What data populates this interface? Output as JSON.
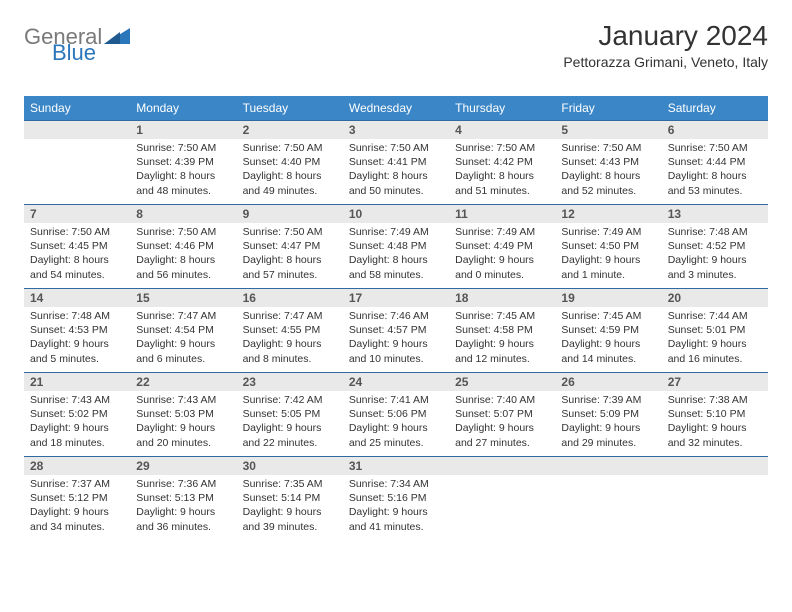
{
  "logo": {
    "general": "General",
    "blue": "Blue"
  },
  "title": "January 2024",
  "location": "Pettorazza Grimani, Veneto, Italy",
  "colors": {
    "header_bg": "#3b86c6",
    "daynum_bg": "#e9e9e9",
    "rule": "#2f6aa3",
    "title_color": "#333333"
  },
  "day_headers": [
    "Sunday",
    "Monday",
    "Tuesday",
    "Wednesday",
    "Thursday",
    "Friday",
    "Saturday"
  ],
  "weeks": [
    [
      {
        "n": "",
        "sr": "",
        "ss": "",
        "dl": ""
      },
      {
        "n": "1",
        "sr": "Sunrise: 7:50 AM",
        "ss": "Sunset: 4:39 PM",
        "dl": "Daylight: 8 hours and 48 minutes."
      },
      {
        "n": "2",
        "sr": "Sunrise: 7:50 AM",
        "ss": "Sunset: 4:40 PM",
        "dl": "Daylight: 8 hours and 49 minutes."
      },
      {
        "n": "3",
        "sr": "Sunrise: 7:50 AM",
        "ss": "Sunset: 4:41 PM",
        "dl": "Daylight: 8 hours and 50 minutes."
      },
      {
        "n": "4",
        "sr": "Sunrise: 7:50 AM",
        "ss": "Sunset: 4:42 PM",
        "dl": "Daylight: 8 hours and 51 minutes."
      },
      {
        "n": "5",
        "sr": "Sunrise: 7:50 AM",
        "ss": "Sunset: 4:43 PM",
        "dl": "Daylight: 8 hours and 52 minutes."
      },
      {
        "n": "6",
        "sr": "Sunrise: 7:50 AM",
        "ss": "Sunset: 4:44 PM",
        "dl": "Daylight: 8 hours and 53 minutes."
      }
    ],
    [
      {
        "n": "7",
        "sr": "Sunrise: 7:50 AM",
        "ss": "Sunset: 4:45 PM",
        "dl": "Daylight: 8 hours and 54 minutes."
      },
      {
        "n": "8",
        "sr": "Sunrise: 7:50 AM",
        "ss": "Sunset: 4:46 PM",
        "dl": "Daylight: 8 hours and 56 minutes."
      },
      {
        "n": "9",
        "sr": "Sunrise: 7:50 AM",
        "ss": "Sunset: 4:47 PM",
        "dl": "Daylight: 8 hours and 57 minutes."
      },
      {
        "n": "10",
        "sr": "Sunrise: 7:49 AM",
        "ss": "Sunset: 4:48 PM",
        "dl": "Daylight: 8 hours and 58 minutes."
      },
      {
        "n": "11",
        "sr": "Sunrise: 7:49 AM",
        "ss": "Sunset: 4:49 PM",
        "dl": "Daylight: 9 hours and 0 minutes."
      },
      {
        "n": "12",
        "sr": "Sunrise: 7:49 AM",
        "ss": "Sunset: 4:50 PM",
        "dl": "Daylight: 9 hours and 1 minute."
      },
      {
        "n": "13",
        "sr": "Sunrise: 7:48 AM",
        "ss": "Sunset: 4:52 PM",
        "dl": "Daylight: 9 hours and 3 minutes."
      }
    ],
    [
      {
        "n": "14",
        "sr": "Sunrise: 7:48 AM",
        "ss": "Sunset: 4:53 PM",
        "dl": "Daylight: 9 hours and 5 minutes."
      },
      {
        "n": "15",
        "sr": "Sunrise: 7:47 AM",
        "ss": "Sunset: 4:54 PM",
        "dl": "Daylight: 9 hours and 6 minutes."
      },
      {
        "n": "16",
        "sr": "Sunrise: 7:47 AM",
        "ss": "Sunset: 4:55 PM",
        "dl": "Daylight: 9 hours and 8 minutes."
      },
      {
        "n": "17",
        "sr": "Sunrise: 7:46 AM",
        "ss": "Sunset: 4:57 PM",
        "dl": "Daylight: 9 hours and 10 minutes."
      },
      {
        "n": "18",
        "sr": "Sunrise: 7:45 AM",
        "ss": "Sunset: 4:58 PM",
        "dl": "Daylight: 9 hours and 12 minutes."
      },
      {
        "n": "19",
        "sr": "Sunrise: 7:45 AM",
        "ss": "Sunset: 4:59 PM",
        "dl": "Daylight: 9 hours and 14 minutes."
      },
      {
        "n": "20",
        "sr": "Sunrise: 7:44 AM",
        "ss": "Sunset: 5:01 PM",
        "dl": "Daylight: 9 hours and 16 minutes."
      }
    ],
    [
      {
        "n": "21",
        "sr": "Sunrise: 7:43 AM",
        "ss": "Sunset: 5:02 PM",
        "dl": "Daylight: 9 hours and 18 minutes."
      },
      {
        "n": "22",
        "sr": "Sunrise: 7:43 AM",
        "ss": "Sunset: 5:03 PM",
        "dl": "Daylight: 9 hours and 20 minutes."
      },
      {
        "n": "23",
        "sr": "Sunrise: 7:42 AM",
        "ss": "Sunset: 5:05 PM",
        "dl": "Daylight: 9 hours and 22 minutes."
      },
      {
        "n": "24",
        "sr": "Sunrise: 7:41 AM",
        "ss": "Sunset: 5:06 PM",
        "dl": "Daylight: 9 hours and 25 minutes."
      },
      {
        "n": "25",
        "sr": "Sunrise: 7:40 AM",
        "ss": "Sunset: 5:07 PM",
        "dl": "Daylight: 9 hours and 27 minutes."
      },
      {
        "n": "26",
        "sr": "Sunrise: 7:39 AM",
        "ss": "Sunset: 5:09 PM",
        "dl": "Daylight: 9 hours and 29 minutes."
      },
      {
        "n": "27",
        "sr": "Sunrise: 7:38 AM",
        "ss": "Sunset: 5:10 PM",
        "dl": "Daylight: 9 hours and 32 minutes."
      }
    ],
    [
      {
        "n": "28",
        "sr": "Sunrise: 7:37 AM",
        "ss": "Sunset: 5:12 PM",
        "dl": "Daylight: 9 hours and 34 minutes."
      },
      {
        "n": "29",
        "sr": "Sunrise: 7:36 AM",
        "ss": "Sunset: 5:13 PM",
        "dl": "Daylight: 9 hours and 36 minutes."
      },
      {
        "n": "30",
        "sr": "Sunrise: 7:35 AM",
        "ss": "Sunset: 5:14 PM",
        "dl": "Daylight: 9 hours and 39 minutes."
      },
      {
        "n": "31",
        "sr": "Sunrise: 7:34 AM",
        "ss": "Sunset: 5:16 PM",
        "dl": "Daylight: 9 hours and 41 minutes."
      },
      {
        "n": "",
        "sr": "",
        "ss": "",
        "dl": ""
      },
      {
        "n": "",
        "sr": "",
        "ss": "",
        "dl": ""
      },
      {
        "n": "",
        "sr": "",
        "ss": "",
        "dl": ""
      }
    ]
  ]
}
